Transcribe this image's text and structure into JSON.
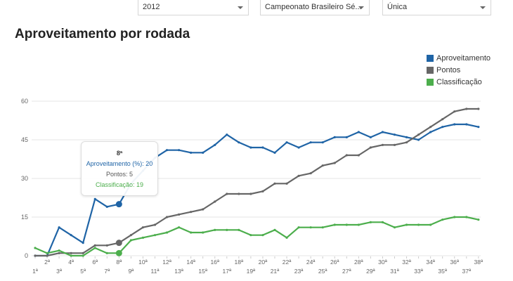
{
  "filters": [
    {
      "value": "2012"
    },
    {
      "value": "Campeonato Brasileiro Sé..."
    },
    {
      "value": "Única"
    }
  ],
  "title": "Aproveitamento por rodada",
  "legend": [
    {
      "label": "Aproveitamento",
      "color": "#1f64a6"
    },
    {
      "label": "Pontos",
      "color": "#666666"
    },
    {
      "label": "Classificação",
      "color": "#4cae4c"
    }
  ],
  "tooltip": {
    "title": "8ª",
    "aproveitamento": "Aproveitamento (%): 20",
    "pontos": "Pontos: 5",
    "classificacao": "Classificação: 19"
  },
  "chart_data": {
    "type": "line",
    "x": [
      "1ª",
      "2ª",
      "3ª",
      "4ª",
      "5ª",
      "6ª",
      "7ª",
      "8ª",
      "9ª",
      "10ª",
      "11ª",
      "12ª",
      "13ª",
      "14ª",
      "15ª",
      "16ª",
      "17ª",
      "18ª",
      "19ª",
      "20ª",
      "21ª",
      "22ª",
      "23ª",
      "24ª",
      "25ª",
      "26ª",
      "27ª",
      "28ª",
      "29ª",
      "30ª",
      "31ª",
      "32ª",
      "33ª",
      "34ª",
      "35ª",
      "36ª",
      "37ª",
      "38ª"
    ],
    "yticks": [
      0,
      15,
      30,
      45,
      60
    ],
    "ylim": [
      0,
      60
    ],
    "grid": true,
    "legend_position": "top-right",
    "series": [
      {
        "name": "Aproveitamento",
        "color": "#1f64a6",
        "values": [
          0,
          0,
          11,
          8,
          5,
          22,
          19,
          20,
          28,
          33,
          38,
          41,
          41,
          40,
          40,
          43,
          47,
          44,
          42,
          42,
          40,
          44,
          42,
          44,
          44,
          46,
          46,
          48,
          46,
          48,
          47,
          46,
          45,
          48,
          50,
          51,
          51,
          50
        ]
      },
      {
        "name": "Pontos",
        "color": "#666666",
        "values": [
          0,
          0,
          1,
          1,
          1,
          4,
          4,
          5,
          8,
          11,
          12,
          15,
          16,
          17,
          18,
          21,
          24,
          24,
          24,
          25,
          28,
          28,
          31,
          32,
          35,
          36,
          39,
          39,
          42,
          43,
          43,
          44,
          47,
          50,
          53,
          56,
          57,
          57
        ]
      },
      {
        "name": "Classificação",
        "color": "#4cae4c",
        "values": [
          3,
          1,
          2,
          0,
          0,
          3,
          1,
          1,
          6,
          7,
          8,
          9,
          11,
          9,
          9,
          10,
          10,
          10,
          8,
          8,
          10,
          7,
          11,
          11,
          11,
          12,
          12,
          12,
          13,
          13,
          11,
          12,
          12,
          12,
          14,
          15,
          15,
          14
        ]
      }
    ]
  }
}
